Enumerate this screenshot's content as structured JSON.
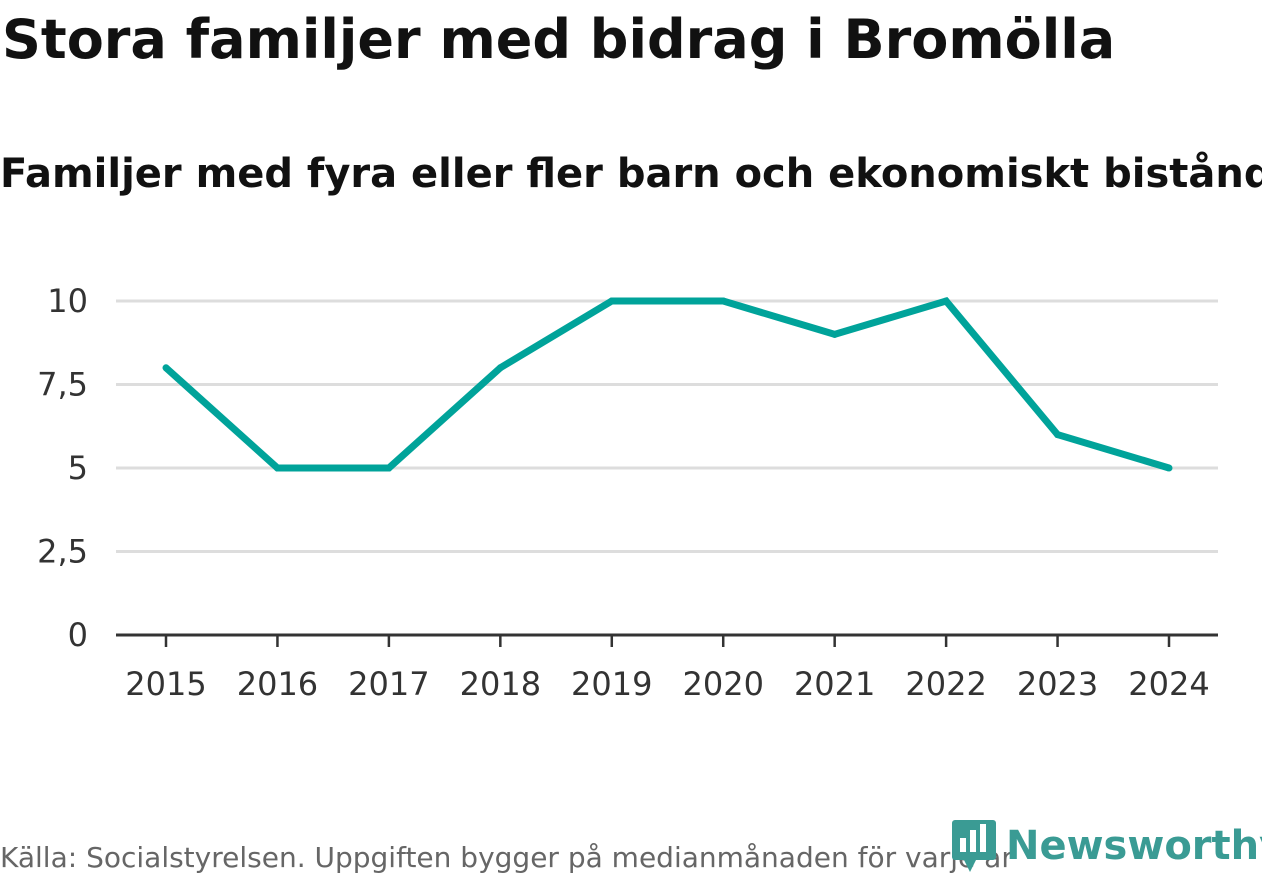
{
  "header": {
    "title": "Stora familjer med bidrag i Bromölla",
    "subtitle": "Familjer med fyra eller fler barn och ekonomiskt bistånd"
  },
  "footer": {
    "source": "Källa: Socialstyrelsen. Uppgiften bygger på medianmånaden för varje år",
    "brand": "Newsworthy"
  },
  "colors": {
    "line": "#00a39a",
    "grid": "#dddddd",
    "axis": "#333333",
    "brand": "#3a9b94"
  },
  "icons": {
    "logo": "newsworthy-logo-icon"
  },
  "chart_data": {
    "type": "line",
    "title": "Stora familjer med bidrag i Bromölla",
    "subtitle": "Familjer med fyra eller fler barn och ekonomiskt bistånd",
    "xlabel": "",
    "ylabel": "",
    "categories": [
      "2015",
      "2016",
      "2017",
      "2018",
      "2019",
      "2020",
      "2021",
      "2022",
      "2023",
      "2024"
    ],
    "series": [
      {
        "name": "Familjer med fyra eller fler barn och ekonomiskt bistånd",
        "values": [
          8,
          5,
          5,
          8,
          10,
          10,
          9,
          10,
          6,
          5
        ]
      }
    ],
    "ylim": [
      0,
      10
    ],
    "yticks": [
      0,
      2.5,
      5,
      7.5,
      10
    ],
    "ytick_labels": [
      "0",
      "2,5",
      "5",
      "7,5",
      "10"
    ],
    "grid": true,
    "legend": "none"
  }
}
